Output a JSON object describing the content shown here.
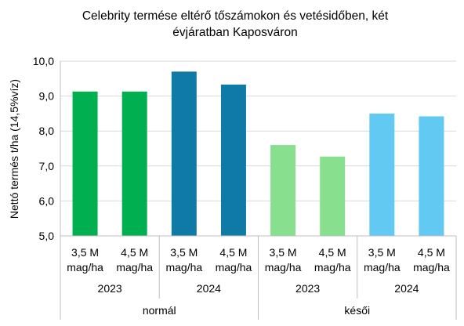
{
  "chart_data": {
    "type": "bar",
    "title_lines": [
      "Celebrity termése eltérő tőszámokon és vetésidőben, két",
      "évjáratban Kaposváron"
    ],
    "ylabel": "Nettó termés t/ha (14,5%víz)",
    "xlabel": "",
    "ylim": [
      5.0,
      10.0
    ],
    "yticks": [
      "5,0",
      "6,0",
      "7,0",
      "8,0",
      "9,0",
      "10,0"
    ],
    "grid": true,
    "legend": "none",
    "categories": [
      {
        "line1": "3,5 M",
        "line2": "mag/ha"
      },
      {
        "line1": "4,5 M",
        "line2": "mag/ha"
      },
      {
        "line1": "3,5 M",
        "line2": "mag/ha"
      },
      {
        "line1": "4,5 M",
        "line2": "mag/ha"
      },
      {
        "line1": "3,5 M",
        "line2": "mag/ha"
      },
      {
        "line1": "4,5 M",
        "line2": "mag/ha"
      },
      {
        "line1": "3,5 M",
        "line2": "mag/ha"
      },
      {
        "line1": "4,5 M",
        "line2": "mag/ha"
      }
    ],
    "values": [
      9.13,
      9.13,
      9.7,
      9.33,
      7.6,
      7.27,
      8.5,
      8.42
    ],
    "bar_colors": [
      "#00b050",
      "#00b050",
      "#0f7aa6",
      "#0f7aa6",
      "#88e08f",
      "#88e08f",
      "#62c9f3",
      "#62c9f3"
    ],
    "years": [
      "2023",
      "2024",
      "2023",
      "2024"
    ],
    "sowing_times": [
      "normál",
      "késői"
    ]
  }
}
